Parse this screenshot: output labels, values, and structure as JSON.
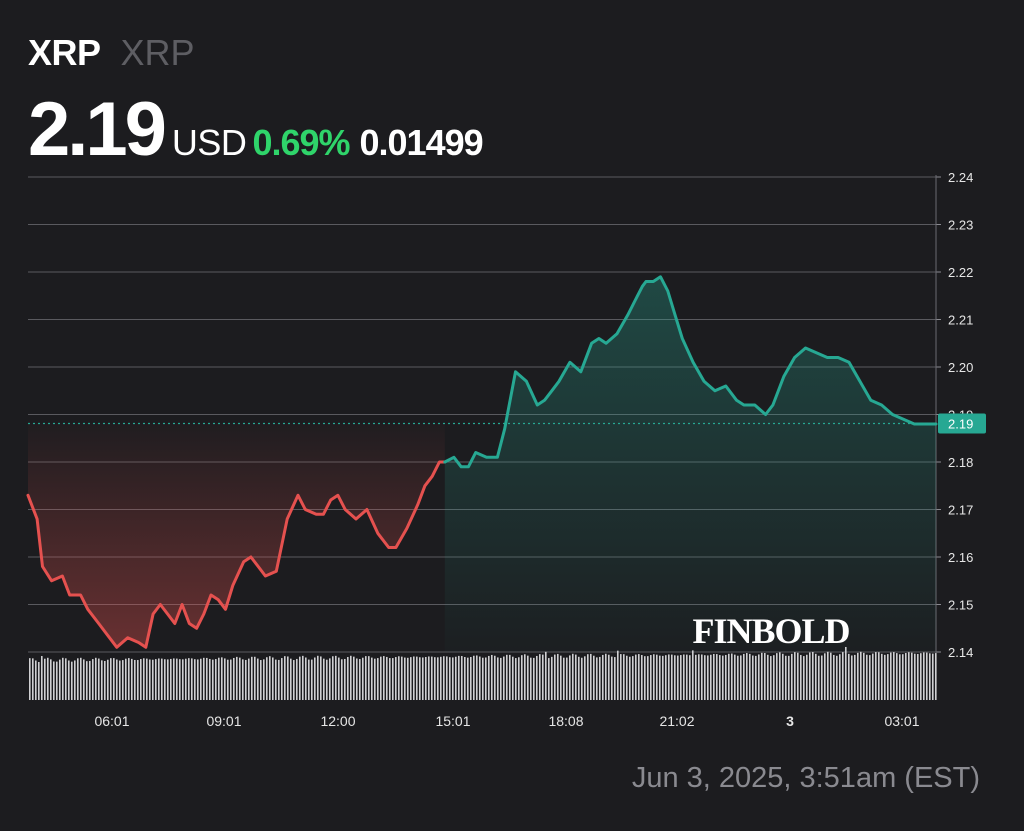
{
  "header": {
    "symbol": "XRP",
    "symbol_secondary": "XRP",
    "price": "2.19",
    "currency": "USD",
    "change_percent": "0.69%",
    "change_value": "0.01499"
  },
  "watermark": "FINBOLD",
  "footer": {
    "timestamp": "Jun 3, 2025, 3:51am (EST)"
  },
  "colors": {
    "background": "#1c1c1f",
    "up": "#27a893",
    "down": "#e5514f",
    "positive_text": "#2fd46a"
  },
  "chart_data": {
    "type": "line",
    "title": "",
    "xlabel": "",
    "ylabel": "",
    "x_tick_labels": [
      "06:01",
      "09:01",
      "12:00",
      "15:01",
      "18:08",
      "21:02",
      "3",
      "03:01"
    ],
    "y_tick_labels": [
      "2.24",
      "2.23",
      "2.22",
      "2.21",
      "2.20",
      "2.19",
      "2.18",
      "2.17",
      "2.16",
      "2.15",
      "2.14"
    ],
    "ylim": [
      2.14,
      2.24
    ],
    "xlim_hours": [
      3.85,
      28.9
    ],
    "baseline": 2.1881,
    "current_label": "2.19",
    "grid": true,
    "series": [
      {
        "x_hours": [
          3.85,
          4.1,
          4.25,
          4.5,
          4.8,
          5.0,
          5.3,
          5.5,
          5.8,
          6.0,
          6.3,
          6.6,
          6.9,
          7.1,
          7.3,
          7.5,
          7.7,
          7.9,
          8.1,
          8.3,
          8.5,
          8.7,
          8.9,
          9.1,
          9.3,
          9.5,
          9.8,
          10.0,
          10.2,
          10.4,
          10.7,
          11.0,
          11.3,
          11.5,
          11.8,
          12.0,
          12.2,
          12.4,
          12.6,
          12.9,
          13.2,
          13.5,
          13.8,
          14.0,
          14.3,
          14.6,
          14.8,
          15.0,
          15.2,
          15.35
        ],
        "y": [
          2.173,
          2.168,
          2.158,
          2.155,
          2.156,
          2.152,
          2.152,
          2.149,
          2.146,
          2.144,
          2.141,
          2.143,
          2.142,
          2.141,
          2.148,
          2.15,
          2.148,
          2.146,
          2.15,
          2.146,
          2.145,
          2.148,
          2.152,
          2.151,
          2.149,
          2.154,
          2.159,
          2.16,
          2.158,
          2.156,
          2.157,
          2.168,
          2.173,
          2.17,
          2.169,
          2.169,
          2.172,
          2.173,
          2.17,
          2.168,
          2.17,
          2.165,
          2.162,
          2.162,
          2.166,
          2.171,
          2.175,
          2.177,
          2.18,
          2.18
        ]
      },
      {
        "x_hours": [
          15.35,
          15.6,
          15.8,
          16.0,
          16.2,
          16.5,
          16.8,
          17.0,
          17.3,
          17.6,
          17.9,
          18.1,
          18.3,
          18.5,
          18.8,
          19.1,
          19.4,
          19.6,
          19.8,
          20.1,
          20.4,
          20.6,
          20.8,
          20.9,
          21.1,
          21.3,
          21.5,
          21.7,
          21.9,
          22.2,
          22.5,
          22.8,
          23.1,
          23.4,
          23.6,
          23.9,
          24.2,
          24.4,
          24.7,
          25.0,
          25.3,
          25.6,
          25.9,
          26.2,
          26.5,
          26.8,
          27.1,
          27.4,
          27.7,
          28.0,
          28.3,
          28.6,
          28.9
        ],
        "y": [
          2.18,
          2.181,
          2.179,
          2.179,
          2.182,
          2.181,
          2.181,
          2.187,
          2.199,
          2.197,
          2.192,
          2.193,
          2.195,
          2.197,
          2.201,
          2.199,
          2.205,
          2.206,
          2.205,
          2.207,
          2.211,
          2.214,
          2.217,
          2.218,
          2.218,
          2.219,
          2.216,
          2.211,
          2.206,
          2.201,
          2.197,
          2.195,
          2.196,
          2.193,
          2.192,
          2.192,
          2.19,
          2.192,
          2.198,
          2.202,
          2.204,
          2.203,
          2.202,
          2.202,
          2.201,
          2.197,
          2.193,
          2.192,
          2.19,
          2.189,
          2.188,
          2.188,
          2.188
        ]
      }
    ]
  }
}
